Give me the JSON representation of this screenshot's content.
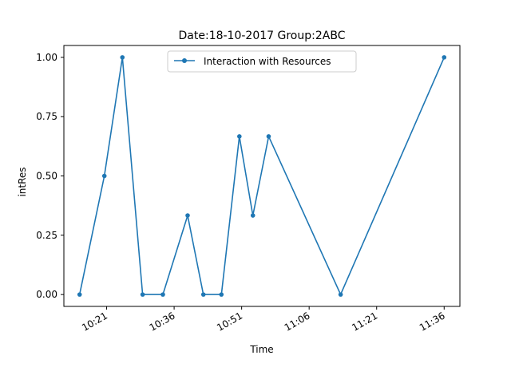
{
  "chart_data": {
    "type": "line",
    "title": "Date:18-10-2017  Group:2ABC",
    "xlabel": "Time",
    "ylabel": "intRes",
    "x_ticks": [
      "10:21",
      "10:36",
      "10:51",
      "11:06",
      "11:21",
      "11:36"
    ],
    "y_ticks": [
      "0.00",
      "0.25",
      "0.50",
      "0.75",
      "1.00"
    ],
    "ylim": [
      -0.05,
      1.05
    ],
    "xlim": [
      "10:11:30",
      "11:39:30"
    ],
    "grid": false,
    "legend_position": "top-center",
    "series": [
      {
        "name": "Interaction with Resources",
        "color": "#1f77b4",
        "marker": "circle",
        "points": [
          {
            "x": "10:15",
            "y": 0.0
          },
          {
            "x": "10:20:30",
            "y": 0.5
          },
          {
            "x": "10:24:30",
            "y": 1.0
          },
          {
            "x": "10:29",
            "y": 0.0
          },
          {
            "x": "10:33:30",
            "y": 0.0
          },
          {
            "x": "10:39",
            "y": 0.3333
          },
          {
            "x": "10:42:30",
            "y": 0.0
          },
          {
            "x": "10:46:30",
            "y": 0.0
          },
          {
            "x": "10:50:30",
            "y": 0.6667
          },
          {
            "x": "10:53:30",
            "y": 0.3333
          },
          {
            "x": "10:57",
            "y": 0.6667
          },
          {
            "x": "11:13",
            "y": 0.0
          },
          {
            "x": "11:36",
            "y": 1.0
          }
        ]
      }
    ]
  }
}
